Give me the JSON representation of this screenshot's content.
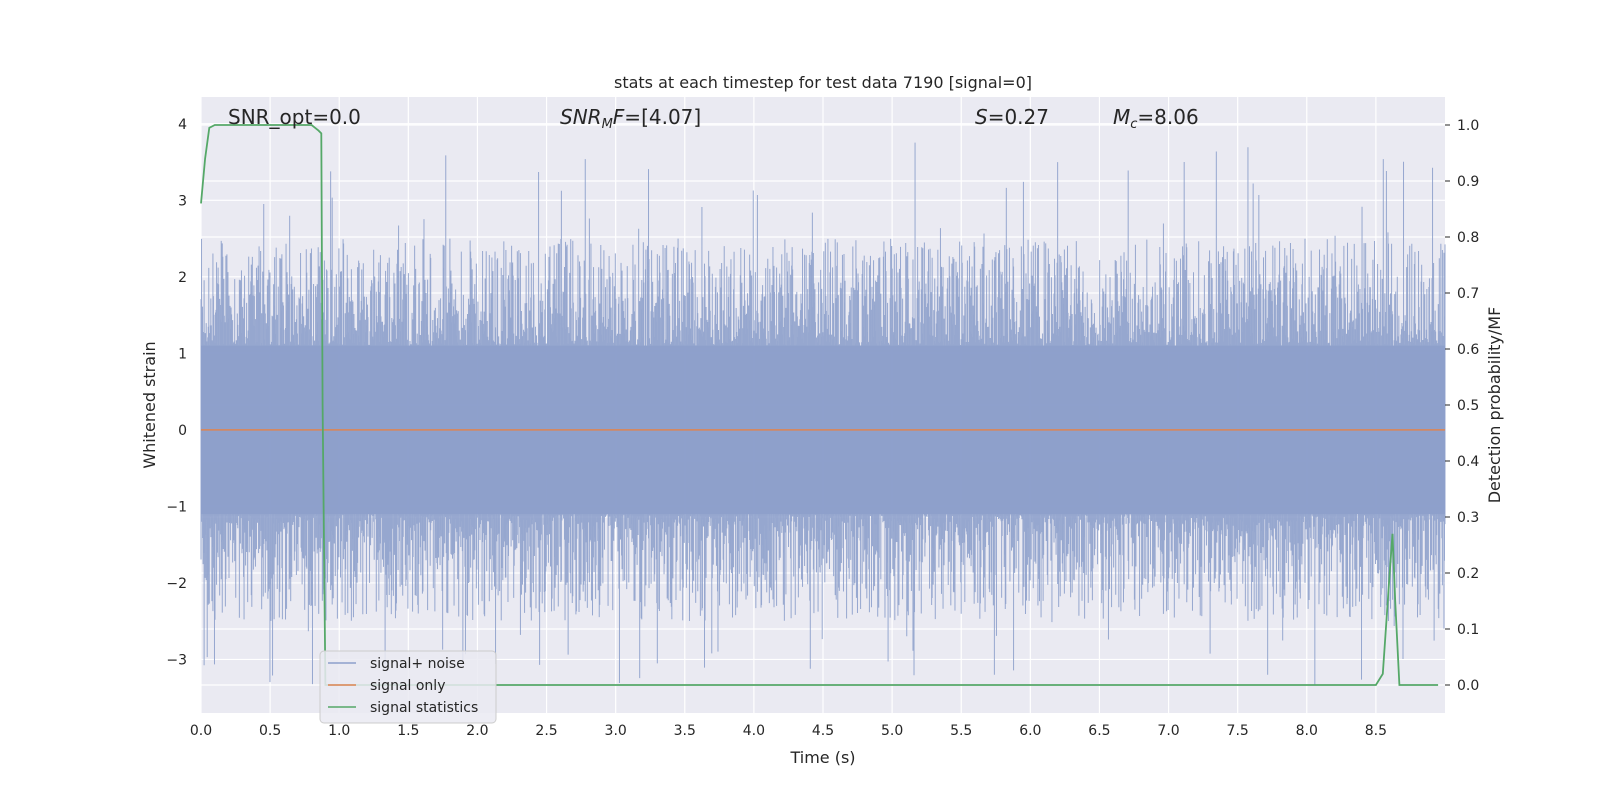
{
  "chart_data": {
    "type": "line",
    "title": "stats at each timestep for test data 7190 [signal=0]",
    "xlabel": "Time (s)",
    "ylabel_left": "Whitened strain",
    "ylabel_right": "Detection probability/MF",
    "xlim": [
      0,
      9.0
    ],
    "ylim_left": [
      -3.7,
      4.35
    ],
    "ylim_right": [
      -0.05,
      1.05
    ],
    "x_ticks": [
      "0.0",
      "0.5",
      "1.0",
      "1.5",
      "2.0",
      "2.5",
      "3.0",
      "3.5",
      "4.0",
      "4.5",
      "5.0",
      "5.5",
      "6.0",
      "6.5",
      "7.0",
      "7.5",
      "8.0",
      "8.5"
    ],
    "y_left_ticks": [
      "−3",
      "−2",
      "−1",
      "0",
      "1",
      "2",
      "3",
      "4"
    ],
    "y_right_ticks": [
      "0.0",
      "0.1",
      "0.2",
      "0.3",
      "0.4",
      "0.5",
      "0.6",
      "0.7",
      "0.8",
      "0.9",
      "1.0"
    ],
    "grid": true,
    "legend_position": "lower-left",
    "annotations": {
      "snr_opt": "SNR_opt=0.0",
      "snr_mf": "[4.07]",
      "s_value": "=0.27",
      "mc_value": "=8.06"
    },
    "series": [
      {
        "name": "signal+ noise",
        "color": "#8da0cb",
        "axis": "left",
        "description_kind": "noise band",
        "core_range": [
          -1.1,
          1.1
        ],
        "typical_peak_range": [
          -2.5,
          2.5
        ],
        "max": 3.78,
        "min": -3.35
      },
      {
        "name": "signal only",
        "color": "#dd8452",
        "axis": "left",
        "x": [
          0,
          9.0
        ],
        "y": [
          0,
          0
        ]
      },
      {
        "name": "signal statistics",
        "color": "#55a868",
        "axis": "right",
        "x": [
          0.0,
          0.03,
          0.06,
          0.1,
          0.2,
          0.4,
          0.6,
          0.8,
          0.85,
          0.87,
          0.88,
          0.9,
          0.93,
          1.0,
          2.0,
          4.0,
          6.0,
          8.0,
          8.5,
          8.55,
          8.6,
          8.62,
          8.64,
          8.67,
          8.7,
          8.8,
          8.95
        ],
        "y": [
          0.86,
          0.94,
          0.995,
          1.0,
          1.0,
          1.0,
          1.0,
          1.0,
          0.99,
          0.985,
          0.5,
          0.0,
          0.0,
          0.0,
          0.0,
          0.0,
          0.0,
          0.0,
          0.0,
          0.02,
          0.2,
          0.27,
          0.15,
          0.0,
          0.0,
          0.0,
          0.0
        ]
      }
    ]
  },
  "colors": {
    "plot_background": "#eaeaf2",
    "grid": "#ffffff",
    "noise": "#8da0cb",
    "signal": "#dd8452",
    "stats": "#55a868"
  }
}
